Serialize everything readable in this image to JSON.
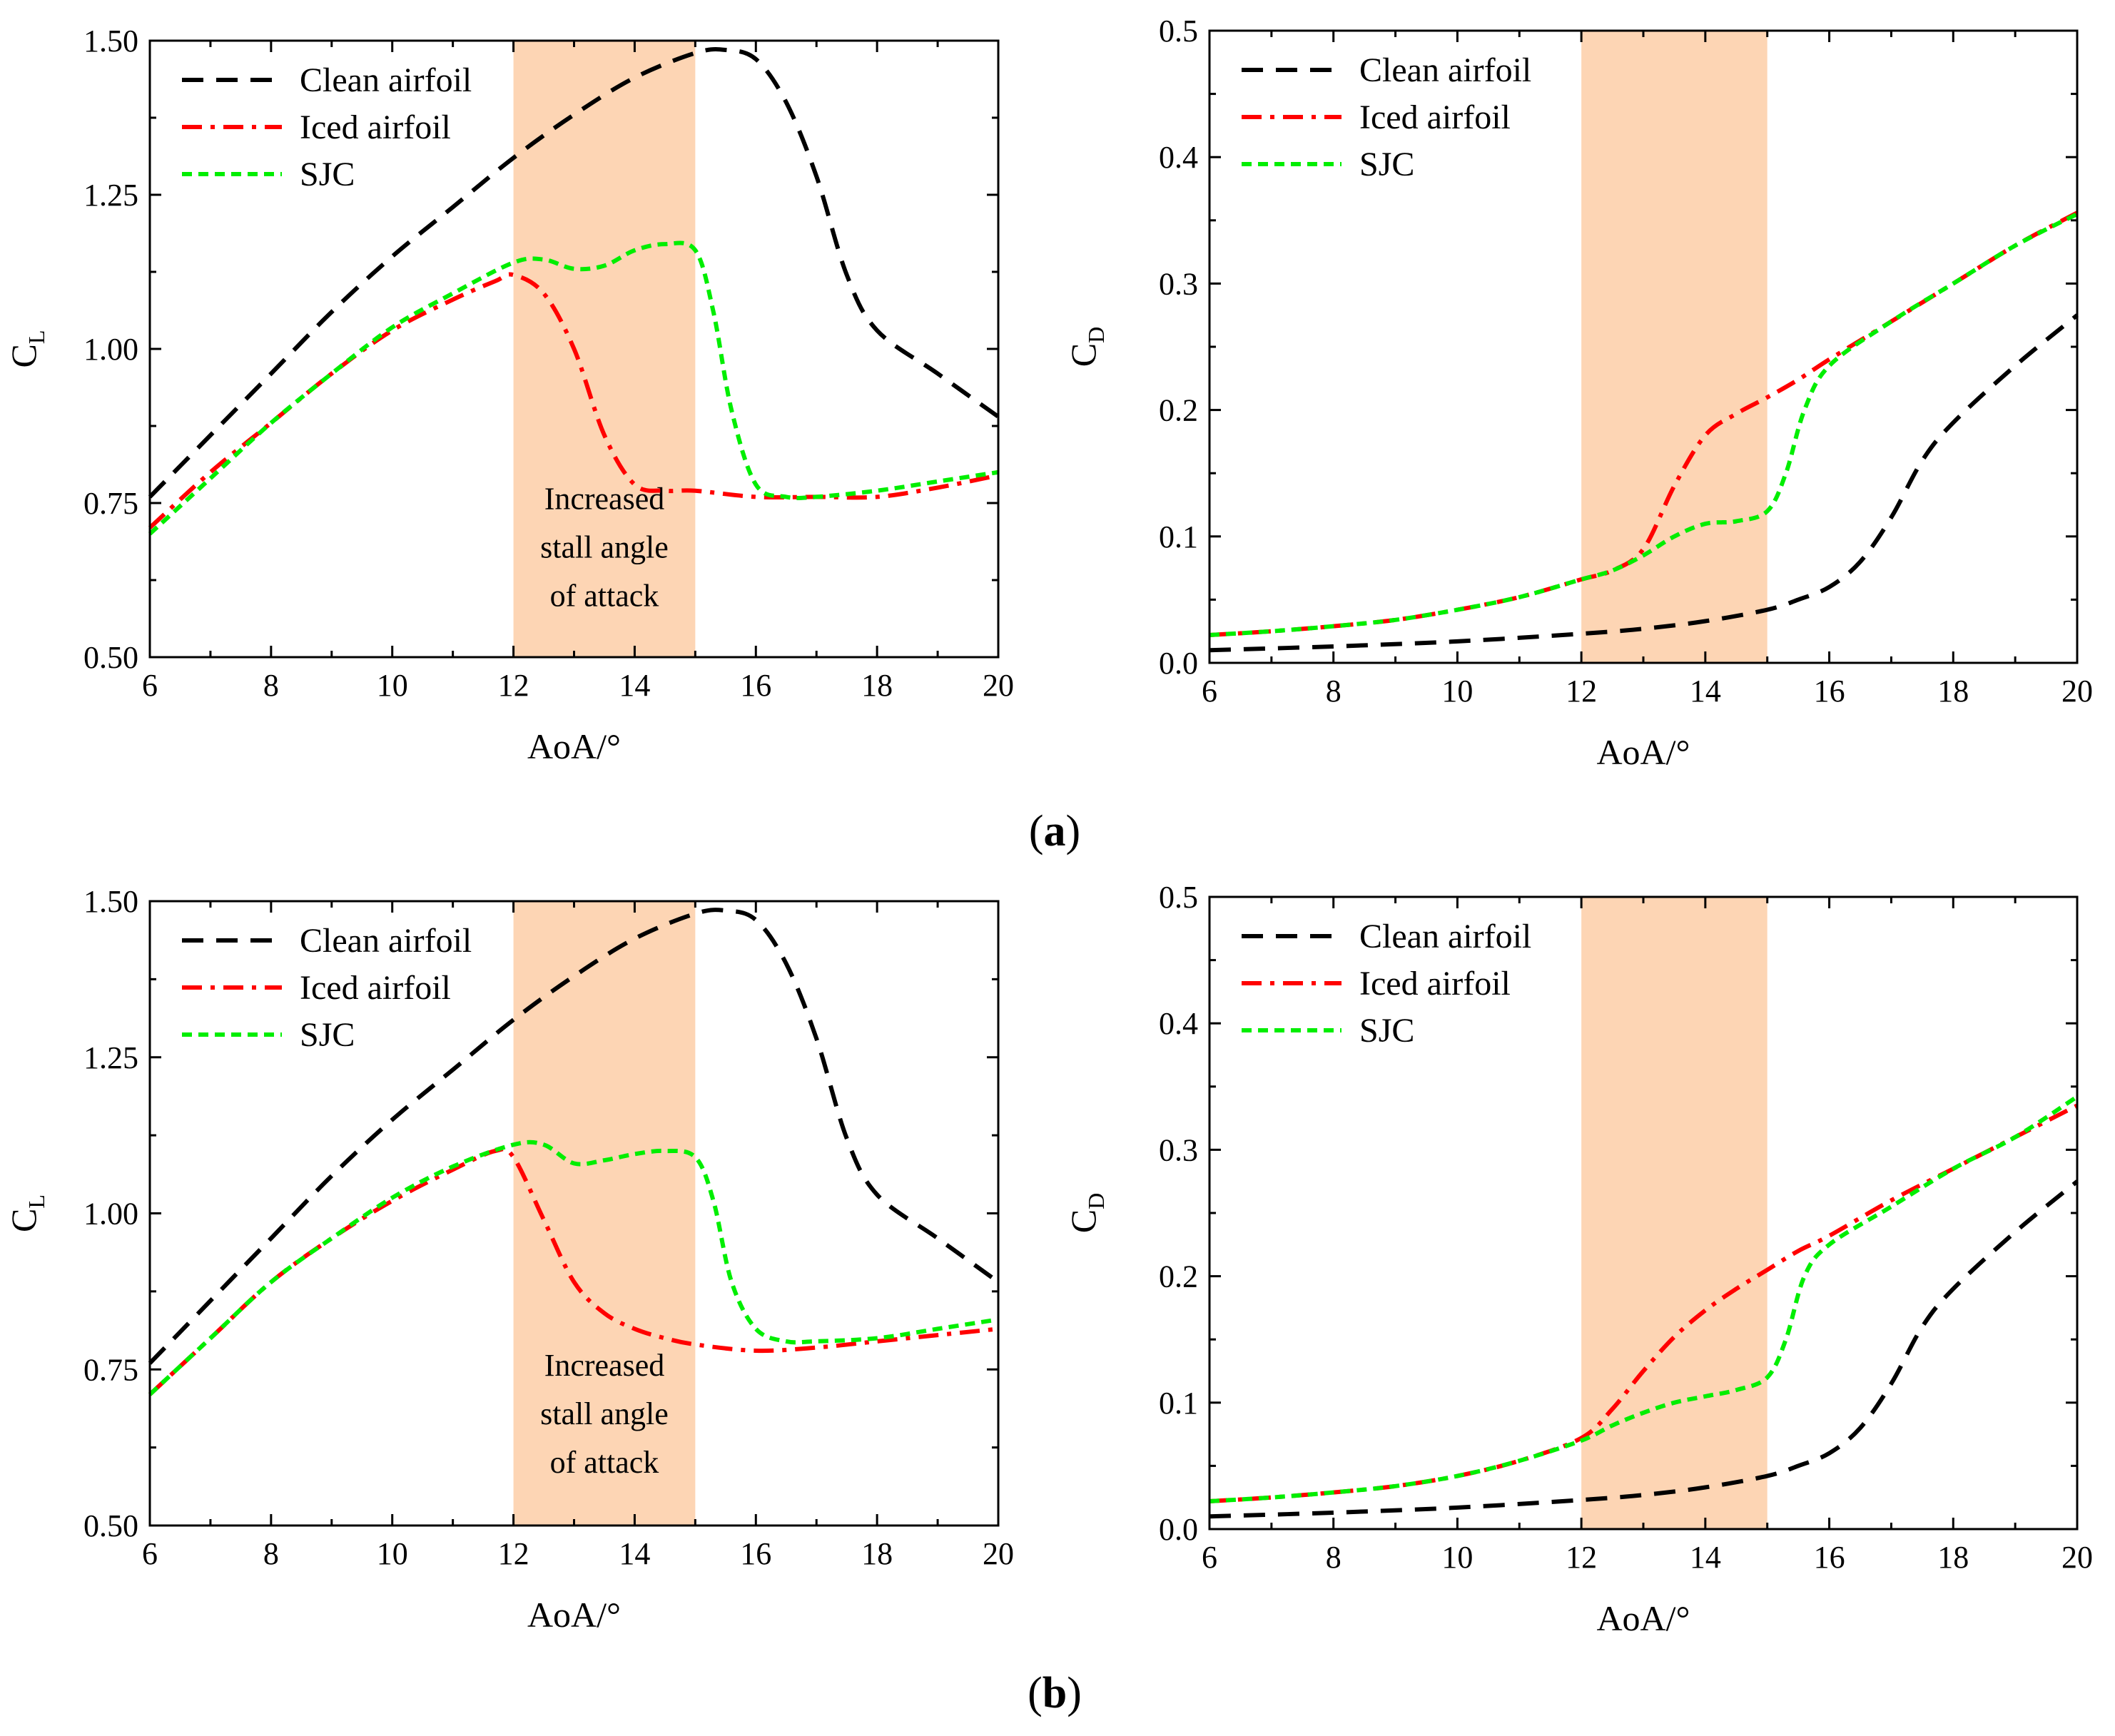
{
  "chart_data": [
    {
      "id": "a-left",
      "type": "line",
      "panel": "a",
      "ylabel_main": "C",
      "ylabel_sub": "L",
      "xlabel": "AoA/°",
      "xlim": [
        6,
        20
      ],
      "ylim": [
        0.5,
        1.5
      ],
      "xticks": [
        6,
        8,
        10,
        12,
        14,
        16,
        18,
        20
      ],
      "yticks": [
        0.5,
        0.75,
        1.0,
        1.25,
        1.5
      ],
      "ytick_labels": [
        "0.50",
        "0.75",
        "1.00",
        "1.25",
        "1.50"
      ],
      "shaded_region": [
        12,
        15
      ],
      "annotation": [
        "Increased",
        "stall angle",
        "of attack"
      ],
      "legend_position": "top-left",
      "series": [
        {
          "name": "Clean airfoil",
          "color": "#000000",
          "style": "dash",
          "x": [
            6,
            7,
            8,
            9,
            10,
            11,
            12,
            13,
            14,
            15,
            15.5,
            16,
            16.5,
            17,
            17.5,
            18,
            19,
            20
          ],
          "y": [
            0.76,
            0.86,
            0.96,
            1.06,
            1.15,
            1.23,
            1.31,
            1.38,
            1.44,
            1.48,
            1.485,
            1.47,
            1.4,
            1.28,
            1.12,
            1.03,
            0.96,
            0.89
          ]
        },
        {
          "name": "Iced airfoil",
          "color": "#ff0000",
          "style": "dashdot",
          "x": [
            6,
            7,
            8,
            9,
            10,
            11,
            11.7,
            12,
            12.5,
            13,
            13.5,
            14,
            14.5,
            15,
            16,
            17,
            18,
            19,
            20
          ],
          "y": [
            0.71,
            0.8,
            0.88,
            0.96,
            1.03,
            1.08,
            1.11,
            1.12,
            1.09,
            1.0,
            0.86,
            0.78,
            0.77,
            0.77,
            0.76,
            0.76,
            0.76,
            0.775,
            0.795
          ]
        },
        {
          "name": "SJC",
          "color": "#00ee00",
          "style": "shortdash",
          "x": [
            6,
            7,
            8,
            9,
            10,
            11,
            12,
            12.5,
            13,
            13.5,
            14,
            14.5,
            15,
            15.3,
            15.6,
            16,
            16.5,
            17,
            18,
            19,
            20
          ],
          "y": [
            0.7,
            0.79,
            0.88,
            0.96,
            1.035,
            1.09,
            1.14,
            1.145,
            1.13,
            1.135,
            1.16,
            1.17,
            1.16,
            1.06,
            0.9,
            0.78,
            0.76,
            0.76,
            0.77,
            0.785,
            0.8
          ]
        }
      ]
    },
    {
      "id": "a-right",
      "type": "line",
      "panel": "a",
      "ylabel_main": "C",
      "ylabel_sub": "D",
      "xlabel": "AoA/°",
      "xlim": [
        6,
        20
      ],
      "ylim": [
        0,
        0.5
      ],
      "xticks": [
        6,
        8,
        10,
        12,
        14,
        16,
        18,
        20
      ],
      "yticks": [
        0,
        0.1,
        0.2,
        0.3,
        0.4,
        0.5
      ],
      "ytick_labels": [
        "0.0",
        "0.1",
        "0.2",
        "0.3",
        "0.4",
        "0.5"
      ],
      "shaded_region": [
        12,
        15
      ],
      "legend_position": "top-left",
      "series": [
        {
          "name": "Clean airfoil",
          "color": "#000000",
          "style": "dash",
          "x": [
            6,
            8,
            10,
            12,
            13,
            14,
            15,
            15.5,
            16,
            16.5,
            17,
            17.5,
            18,
            19,
            20
          ],
          "y": [
            0.01,
            0.013,
            0.017,
            0.023,
            0.027,
            0.033,
            0.042,
            0.05,
            0.06,
            0.08,
            0.115,
            0.16,
            0.19,
            0.235,
            0.275
          ]
        },
        {
          "name": "Iced airfoil",
          "color": "#ff0000",
          "style": "dashdot",
          "x": [
            6,
            7,
            8,
            9,
            10,
            11,
            12,
            12.5,
            13,
            13.5,
            14,
            14.5,
            15,
            15.5,
            16,
            17,
            18,
            19,
            20
          ],
          "y": [
            0.022,
            0.025,
            0.029,
            0.034,
            0.042,
            0.052,
            0.066,
            0.073,
            0.09,
            0.14,
            0.18,
            0.197,
            0.21,
            0.224,
            0.24,
            0.27,
            0.3,
            0.33,
            0.356
          ]
        },
        {
          "name": "SJC",
          "color": "#00ee00",
          "style": "shortdash",
          "x": [
            6,
            7,
            8,
            9,
            10,
            11,
            12,
            12.5,
            13,
            13.5,
            14,
            14.5,
            15,
            15.3,
            15.6,
            16,
            17,
            18,
            19,
            20
          ],
          "y": [
            0.022,
            0.025,
            0.029,
            0.034,
            0.042,
            0.052,
            0.066,
            0.073,
            0.085,
            0.1,
            0.11,
            0.112,
            0.12,
            0.15,
            0.2,
            0.235,
            0.27,
            0.3,
            0.33,
            0.355
          ]
        }
      ]
    },
    {
      "id": "b-left",
      "type": "line",
      "panel": "b",
      "ylabel_main": "C",
      "ylabel_sub": "L",
      "xlabel": "AoA/°",
      "xlim": [
        6,
        20
      ],
      "ylim": [
        0.5,
        1.5
      ],
      "xticks": [
        6,
        8,
        10,
        12,
        14,
        16,
        18,
        20
      ],
      "yticks": [
        0.5,
        0.75,
        1.0,
        1.25,
        1.5
      ],
      "ytick_labels": [
        "0.50",
        "0.75",
        "1.00",
        "1.25",
        "1.50"
      ],
      "shaded_region": [
        12,
        15
      ],
      "annotation": [
        "Increased",
        "stall angle",
        "of attack"
      ],
      "legend_position": "top-left",
      "series": [
        {
          "name": "Clean airfoil",
          "color": "#000000",
          "style": "dash",
          "x": [
            6,
            7,
            8,
            9,
            10,
            11,
            12,
            13,
            14,
            15,
            15.5,
            16,
            16.5,
            17,
            17.5,
            18,
            19,
            20
          ],
          "y": [
            0.76,
            0.86,
            0.96,
            1.06,
            1.15,
            1.23,
            1.31,
            1.38,
            1.44,
            1.48,
            1.485,
            1.47,
            1.4,
            1.28,
            1.12,
            1.03,
            0.96,
            0.89
          ]
        },
        {
          "name": "Iced airfoil",
          "color": "#ff0000",
          "style": "dashdot",
          "x": [
            6,
            7,
            8,
            9,
            10,
            11,
            11.7,
            12,
            12.5,
            13,
            13.5,
            14,
            14.5,
            15,
            16,
            17,
            18,
            19,
            20
          ],
          "y": [
            0.71,
            0.8,
            0.89,
            0.96,
            1.02,
            1.07,
            1.1,
            1.09,
            0.99,
            0.89,
            0.84,
            0.815,
            0.8,
            0.79,
            0.78,
            0.785,
            0.795,
            0.805,
            0.815
          ]
        },
        {
          "name": "SJC",
          "color": "#00ee00",
          "style": "shortdash",
          "x": [
            6,
            7,
            8,
            9,
            10,
            11,
            12,
            12.5,
            13,
            13.5,
            14,
            14.5,
            15,
            15.3,
            15.6,
            16,
            16.5,
            17,
            18,
            19,
            20
          ],
          "y": [
            0.71,
            0.8,
            0.89,
            0.96,
            1.025,
            1.075,
            1.11,
            1.11,
            1.08,
            1.085,
            1.095,
            1.1,
            1.09,
            1.02,
            0.89,
            0.815,
            0.795,
            0.795,
            0.8,
            0.815,
            0.83
          ]
        }
      ]
    },
    {
      "id": "b-right",
      "type": "line",
      "panel": "b",
      "ylabel_main": "C",
      "ylabel_sub": "D",
      "xlabel": "AoA/°",
      "xlim": [
        6,
        20
      ],
      "ylim": [
        0,
        0.5
      ],
      "xticks": [
        6,
        8,
        10,
        12,
        14,
        16,
        18,
        20
      ],
      "yticks": [
        0,
        0.1,
        0.2,
        0.3,
        0.4,
        0.5
      ],
      "ytick_labels": [
        "0.0",
        "0.1",
        "0.2",
        "0.3",
        "0.4",
        "0.5"
      ],
      "shaded_region": [
        12,
        15
      ],
      "legend_position": "top-left",
      "series": [
        {
          "name": "Clean airfoil",
          "color": "#000000",
          "style": "dash",
          "x": [
            6,
            8,
            10,
            12,
            13,
            14,
            15,
            15.5,
            16,
            16.5,
            17,
            17.5,
            18,
            19,
            20
          ],
          "y": [
            0.01,
            0.013,
            0.017,
            0.023,
            0.027,
            0.033,
            0.042,
            0.05,
            0.06,
            0.08,
            0.115,
            0.16,
            0.19,
            0.235,
            0.275
          ]
        },
        {
          "name": "Iced airfoil",
          "color": "#ff0000",
          "style": "dashdot",
          "x": [
            6,
            7,
            8,
            9,
            10,
            11,
            12,
            12.5,
            13,
            13.5,
            14,
            14.5,
            15,
            15.5,
            16,
            17,
            18,
            19,
            20
          ],
          "y": [
            0.022,
            0.025,
            0.029,
            0.034,
            0.042,
            0.054,
            0.072,
            0.095,
            0.125,
            0.152,
            0.173,
            0.19,
            0.205,
            0.22,
            0.232,
            0.26,
            0.285,
            0.31,
            0.335
          ]
        },
        {
          "name": "SJC",
          "color": "#00ee00",
          "style": "shortdash",
          "x": [
            6,
            7,
            8,
            9,
            10,
            11,
            12,
            12.5,
            13,
            13.5,
            14,
            14.5,
            15,
            15.3,
            15.6,
            16,
            17,
            18,
            19,
            20
          ],
          "y": [
            0.022,
            0.025,
            0.029,
            0.034,
            0.042,
            0.054,
            0.07,
            0.082,
            0.092,
            0.1,
            0.105,
            0.11,
            0.12,
            0.15,
            0.2,
            0.225,
            0.255,
            0.285,
            0.31,
            0.342
          ]
        }
      ]
    }
  ],
  "panel_labels": {
    "a": {
      "open": "(",
      "letter": "a",
      "close": ")"
    },
    "b": {
      "open": "(",
      "letter": "b",
      "close": ")"
    }
  }
}
